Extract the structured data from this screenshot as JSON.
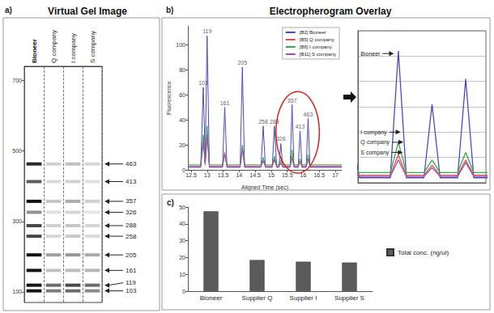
{
  "chart_data": [
    {
      "type": "gel",
      "title": "Virtual Gel Image",
      "annotations": [
        {
          "text": "a)"
        }
      ],
      "categories": [
        "Bioneer",
        "Q company",
        "I company",
        "S company"
      ],
      "bands": [
        463,
        413,
        357,
        326,
        288,
        258,
        205,
        161,
        119,
        103
      ],
      "values": [
        [
          41,
          31,
          52,
          21,
          35,
          35,
          82,
          50,
          107,
          66
        ],
        [
          9,
          7,
          11,
          6,
          9,
          8,
          18,
          12,
          28,
          25
        ],
        [
          12,
          9,
          16,
          8,
          11,
          10,
          20,
          13,
          35,
          28
        ],
        [
          8,
          6,
          9,
          5,
          8,
          7,
          16,
          14,
          28,
          22
        ]
      ],
      "ylim": [
        70,
        740
      ],
      "yticks": [
        100,
        300,
        500,
        700
      ],
      "grid": true
    },
    {
      "type": "line",
      "title": "Electropherogram Overlay",
      "xlabel": "Aligned Time (sec)",
      "ylabel": "Fluorescence",
      "annotations": [
        {
          "text": "b)"
        },
        {
          "text": "103",
          "x": 12.88,
          "y": 66
        },
        {
          "text": "119",
          "x": 13.0,
          "y": 107
        },
        {
          "text": "161",
          "x": 13.55,
          "y": 50
        },
        {
          "text": "205",
          "x": 14.1,
          "y": 82
        },
        {
          "text": "258",
          "x": 14.75,
          "y": 35
        },
        {
          "text": "288",
          "x": 15.1,
          "y": 35
        },
        {
          "text": "326",
          "x": 15.3,
          "y": 21
        },
        {
          "text": "357",
          "x": 15.65,
          "y": 52
        },
        {
          "text": "413",
          "x": 15.9,
          "y": 31
        },
        {
          "text": "463",
          "x": 16.15,
          "y": 41
        }
      ],
      "x": [
        12.4,
        12.8,
        12.88,
        12.94,
        13.0,
        13.07,
        13.48,
        13.55,
        13.62,
        14.03,
        14.1,
        14.17,
        14.68,
        14.75,
        14.82,
        15.03,
        15.1,
        15.17,
        15.24,
        15.3,
        15.36,
        15.59,
        15.65,
        15.71,
        15.84,
        15.9,
        15.96,
        16.09,
        16.15,
        16.21,
        17.2
      ],
      "series": [
        {
          "name": "[B2] Bioneer",
          "color": "#4b4bbd",
          "values": [
            2,
            2,
            66,
            10,
            107,
            2,
            2,
            50,
            2,
            2,
            82,
            2,
            2,
            35,
            2,
            2,
            35,
            2,
            2,
            21,
            2,
            2,
            52,
            2,
            2,
            31,
            2,
            2,
            41,
            2,
            2
          ]
        },
        {
          "name": "[B5] Q company",
          "color": "#d9534f",
          "values": [
            3,
            3,
            25,
            5,
            28,
            3,
            3,
            12,
            3,
            3,
            18,
            3,
            3,
            8,
            3,
            3,
            9,
            3,
            3,
            6,
            3,
            3,
            11,
            3,
            3,
            7,
            3,
            3,
            9,
            3,
            3
          ]
        },
        {
          "name": "[B6] I company",
          "color": "#3fa34d",
          "values": [
            4,
            4,
            28,
            6,
            35,
            4,
            4,
            13,
            4,
            4,
            20,
            4,
            4,
            10,
            4,
            4,
            11,
            4,
            4,
            8,
            4,
            4,
            16,
            4,
            4,
            9,
            4,
            4,
            12,
            4,
            4
          ]
        },
        {
          "name": "[B11] S company",
          "color": "#9b4fb0",
          "values": [
            2.5,
            2.5,
            22,
            4,
            28,
            2.5,
            2.5,
            14,
            2.5,
            2.5,
            16,
            2.5,
            2.5,
            7,
            2.5,
            2.5,
            8,
            2.5,
            2.5,
            5,
            2.5,
            2.5,
            9,
            2.5,
            2.5,
            6,
            2.5,
            2.5,
            8,
            2.5,
            2.5
          ]
        }
      ],
      "xlim": [
        12.4,
        17.2
      ],
      "xticks": [
        12.5,
        13,
        13.5,
        14,
        14.5,
        15,
        15.5,
        16,
        16.5,
        17
      ],
      "ylim": [
        0,
        115
      ],
      "yticks": [
        0,
        20,
        40,
        60,
        80,
        100
      ],
      "grid": false,
      "legend": "upper right",
      "inset": {
        "xlim": [
          15.35,
          16.3
        ],
        "ylim": [
          0,
          60
        ],
        "yticks": [
          0,
          10,
          20,
          30,
          40,
          50,
          60
        ],
        "grid": true,
        "tick_labels": false,
        "annotations": [
          {
            "text": "Bioneer",
            "x": 15.37,
            "y": 51
          },
          {
            "text": "I company",
            "x": 15.37,
            "y": 20
          },
          {
            "text": "Q company",
            "x": 15.37,
            "y": 16
          },
          {
            "text": "S company",
            "x": 15.37,
            "y": 12
          }
        ]
      }
    },
    {
      "type": "bar",
      "annotations": [
        {
          "text": "c)"
        }
      ],
      "categories": [
        "Bioneer",
        "Supplier Q",
        "Supplier I",
        "Supplier S"
      ],
      "series": [
        {
          "name": "Total conc. (ng/ul)",
          "color": "#5b5b5b",
          "values": [
            47.5,
            18.5,
            17.5,
            17
          ]
        }
      ],
      "ylim": [
        0,
        50
      ],
      "yticks": [
        0,
        10,
        20,
        30,
        40,
        50
      ],
      "grid": false,
      "legend": "right"
    }
  ]
}
